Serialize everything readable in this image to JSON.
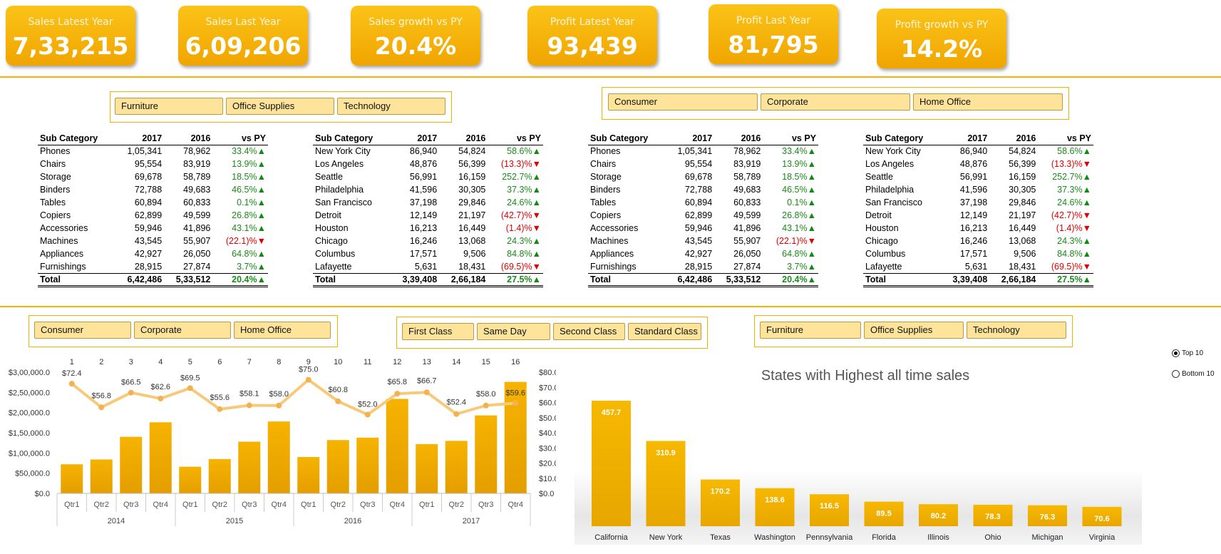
{
  "kpis": [
    {
      "label": "Sales Latest Year",
      "value": "7,33,215"
    },
    {
      "label": "Sales Last Year",
      "value": "6,09,206"
    },
    {
      "label": "Sales growth vs PY",
      "value": "20.4%"
    },
    {
      "label": "Profit Latest Year",
      "value": "93,439"
    },
    {
      "label": "Profit Last Year",
      "value": "81,795"
    },
    {
      "label": "Profit growth vs PY",
      "value": "14.2%"
    }
  ],
  "slicers": {
    "category_top": [
      "Furniture",
      "Office Supplies",
      "Technology"
    ],
    "segment_top": [
      "Consumer",
      "Corporate",
      "Home Office"
    ],
    "segment_bottom": [
      "Consumer",
      "Corporate",
      "Home Office"
    ],
    "ship_mode": [
      "First Class",
      "Same Day",
      "Second Class",
      "Standard Class"
    ],
    "category_bottom": [
      "Furniture",
      "Office Supplies",
      "Technology"
    ]
  },
  "tables": [
    {
      "headers": [
        "Sub Category",
        "2017",
        "2016",
        "vs PY"
      ],
      "rows": [
        [
          "Phones",
          "1,05,341",
          "78,962",
          "33.4%",
          "up"
        ],
        [
          "Chairs",
          "95,554",
          "83,919",
          "13.9%",
          "up"
        ],
        [
          "Storage",
          "69,678",
          "58,789",
          "18.5%",
          "up"
        ],
        [
          "Binders",
          "72,788",
          "49,683",
          "46.5%",
          "up"
        ],
        [
          "Tables",
          "60,894",
          "60,833",
          "0.1%",
          "up"
        ],
        [
          "Copiers",
          "62,899",
          "49,599",
          "26.8%",
          "up"
        ],
        [
          "Accessories",
          "59,946",
          "41,896",
          "43.1%",
          "up"
        ],
        [
          "Machines",
          "43,545",
          "55,907",
          "(22.1)%",
          "down"
        ],
        [
          "Appliances",
          "42,927",
          "26,050",
          "64.8%",
          "up"
        ],
        [
          "Furnishings",
          "28,915",
          "27,874",
          "3.7%",
          "up"
        ]
      ],
      "total": [
        "Total",
        "6,42,486",
        "5,33,512",
        "20.4%",
        "up"
      ]
    },
    {
      "headers": [
        "Sub Category",
        "2017",
        "2016",
        "vs PY"
      ],
      "rows": [
        [
          "New York City",
          "86,940",
          "54,824",
          "58.6%",
          "up"
        ],
        [
          "Los Angeles",
          "48,876",
          "56,399",
          "(13.3)%",
          "down"
        ],
        [
          "Seattle",
          "56,991",
          "16,159",
          "252.7%",
          "up"
        ],
        [
          "Philadelphia",
          "41,596",
          "30,305",
          "37.3%",
          "up"
        ],
        [
          "San Francisco",
          "37,198",
          "29,846",
          "24.6%",
          "up"
        ],
        [
          "Detroit",
          "12,149",
          "21,197",
          "(42.7)%",
          "down"
        ],
        [
          "Houston",
          "16,213",
          "16,449",
          "(1.4)%",
          "down"
        ],
        [
          "Chicago",
          "16,246",
          "13,068",
          "24.3%",
          "up"
        ],
        [
          "Columbus",
          "17,571",
          "9,506",
          "84.8%",
          "up"
        ],
        [
          "Lafayette",
          "5,631",
          "18,431",
          "(69.5)%",
          "down"
        ]
      ],
      "total": [
        "Total",
        "3,39,408",
        "2,66,184",
        "27.5%",
        "up"
      ]
    },
    {
      "headers": [
        "Sub Category",
        "2017",
        "2016",
        "vs PY"
      ],
      "rows": [
        [
          "Phones",
          "1,05,341",
          "78,962",
          "33.4%",
          "up"
        ],
        [
          "Chairs",
          "95,554",
          "83,919",
          "13.9%",
          "up"
        ],
        [
          "Storage",
          "69,678",
          "58,789",
          "18.5%",
          "up"
        ],
        [
          "Binders",
          "72,788",
          "49,683",
          "46.5%",
          "up"
        ],
        [
          "Tables",
          "60,894",
          "60,833",
          "0.1%",
          "up"
        ],
        [
          "Copiers",
          "62,899",
          "49,599",
          "26.8%",
          "up"
        ],
        [
          "Accessories",
          "59,946",
          "41,896",
          "43.1%",
          "up"
        ],
        [
          "Machines",
          "43,545",
          "55,907",
          "(22.1)%",
          "down"
        ],
        [
          "Appliances",
          "42,927",
          "26,050",
          "64.8%",
          "up"
        ],
        [
          "Furnishings",
          "28,915",
          "27,874",
          "3.7%",
          "up"
        ]
      ],
      "total": [
        "Total",
        "6,42,486",
        "5,33,512",
        "20.4%",
        "up"
      ]
    },
    {
      "headers": [
        "Sub Category",
        "2017",
        "2016",
        "vs PY"
      ],
      "rows": [
        [
          "New York City",
          "86,940",
          "54,824",
          "58.6%",
          "up"
        ],
        [
          "Los Angeles",
          "48,876",
          "56,399",
          "(13.3)%",
          "down"
        ],
        [
          "Seattle",
          "56,991",
          "16,159",
          "252.7%",
          "up"
        ],
        [
          "Philadelphia",
          "41,596",
          "30,305",
          "37.3%",
          "up"
        ],
        [
          "San Francisco",
          "37,198",
          "29,846",
          "24.6%",
          "up"
        ],
        [
          "Detroit",
          "12,149",
          "21,197",
          "(42.7)%",
          "down"
        ],
        [
          "Houston",
          "16,213",
          "16,449",
          "(1.4)%",
          "down"
        ],
        [
          "Chicago",
          "16,246",
          "13,068",
          "24.3%",
          "up"
        ],
        [
          "Columbus",
          "17,571",
          "9,506",
          "84.8%",
          "up"
        ],
        [
          "Lafayette",
          "5,631",
          "18,431",
          "(69.5)%",
          "down"
        ]
      ],
      "total": [
        "Total",
        "3,39,408",
        "2,66,184",
        "27.5%",
        "up"
      ]
    }
  ],
  "radio": {
    "top": "Top 10",
    "bottom": "Bottom 10",
    "selected": "Top 10"
  },
  "chart_data": [
    {
      "type": "bar",
      "title": "",
      "index_labels": [
        "1",
        "2",
        "3",
        "4",
        "5",
        "6",
        "7",
        "8",
        "9",
        "10",
        "11",
        "12",
        "13",
        "14",
        "15",
        "16"
      ],
      "quarters": [
        "Qtr1",
        "Qtr2",
        "Qtr3",
        "Qtr4",
        "Qtr1",
        "Qtr2",
        "Qtr3",
        "Qtr4",
        "Qtr1",
        "Qtr2",
        "Qtr3",
        "Qtr4",
        "Qtr1",
        "Qtr2",
        "Qtr3",
        "Qtr4"
      ],
      "years": [
        "2014",
        "2015",
        "2016",
        "2017"
      ],
      "left_axis_ticks": [
        "$0.0",
        "$50,000.0",
        "$1,00,000.0",
        "$1,50,000.0",
        "$2,00,000.0",
        "$2,50,000.0",
        "$3,00,000.0"
      ],
      "right_axis_ticks": [
        "$0.0",
        "$10.0",
        "$20.0",
        "$30.0",
        "$40.0",
        "$50.0",
        "$60.0",
        "$70.0",
        "$80.0"
      ],
      "ylim_left": [
        0,
        300000
      ],
      "ylim_right": [
        0,
        80
      ],
      "series": [
        {
          "values": [
            72000,
            84000,
            140000,
            176000,
            66000,
            85000,
            128000,
            178000,
            90000,
            132000,
            138000,
            234000,
            122000,
            130000,
            193000,
            276000
          ]
        },
        {
          "values": [
            72.4,
            56.8,
            66.5,
            62.6,
            69.5,
            55.6,
            58.1,
            58.0,
            75.0,
            60.8,
            52.0,
            65.8,
            66.7,
            52.4,
            58.0,
            59.6
          ],
          "labels": [
            "$72.4",
            "$56.8",
            "$66.5",
            "$62.6",
            "$69.5",
            "$55.6",
            "$58.1",
            "$58.0",
            "$75.0",
            "$60.8",
            "$52.0",
            "$65.8",
            "$66.7",
            "$52.4",
            "$58.0",
            "$59.6"
          ]
        }
      ]
    },
    {
      "type": "bar",
      "title": "States with Highest all time sales",
      "categories": [
        "California",
        "New York",
        "Texas",
        "Washington",
        "Pennsylvania",
        "Florida",
        "Illinois",
        "Ohio",
        "Michigan",
        "Virginia"
      ],
      "values": [
        457.7,
        310.9,
        170.2,
        138.6,
        116.5,
        89.5,
        80.2,
        78.3,
        76.3,
        70.6
      ],
      "labels": [
        "457.7",
        "310.9",
        "170.2",
        "138.6",
        "116.5",
        "89.5",
        "80.2",
        "78.3",
        "76.3",
        "70.6"
      ],
      "ylim": [
        0,
        500
      ]
    }
  ]
}
